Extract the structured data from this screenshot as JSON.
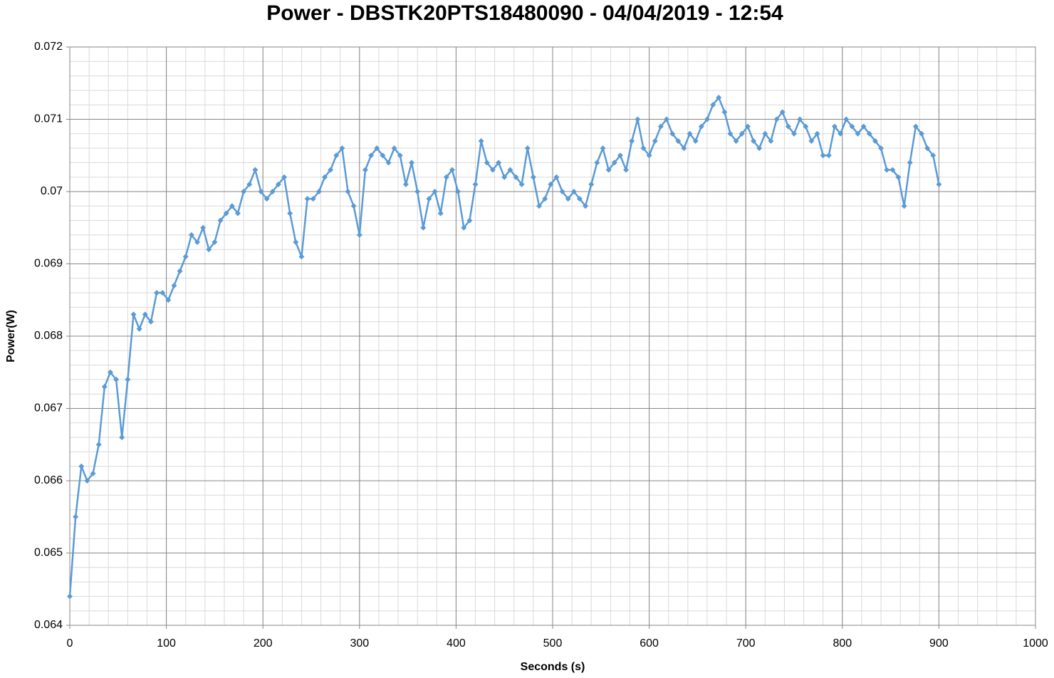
{
  "chart_data": {
    "type": "line",
    "title": "Power - DBSTK20PTS18480090 - 04/04/2019 - 12:54",
    "x_label": "Seconds (s)",
    "y_label": "Power(W)",
    "xlim": [
      0,
      1000
    ],
    "xticks": [
      0,
      100,
      200,
      300,
      400,
      500,
      600,
      700,
      800,
      900,
      1000
    ],
    "ylim": [
      0.064,
      0.072
    ],
    "yticks": [
      0.064,
      0.065,
      0.066,
      0.067,
      0.068,
      0.069,
      0.07,
      0.071,
      0.072
    ],
    "grid": true,
    "minor_grid": {
      "x": 20,
      "y": 0.0002
    },
    "marker": "diamond",
    "series": [
      {
        "color": "#5b9bd5",
        "x": [
          0,
          6,
          12,
          18,
          24,
          30,
          36,
          42,
          48,
          54,
          60,
          66,
          72,
          78,
          84,
          90,
          96,
          102,
          108,
          114,
          120,
          126,
          132,
          138,
          144,
          150,
          156,
          162,
          168,
          174,
          180,
          186,
          192,
          198,
          204,
          210,
          216,
          222,
          228,
          234,
          240,
          246,
          252,
          258,
          264,
          270,
          276,
          282,
          288,
          294,
          300,
          306,
          312,
          318,
          324,
          330,
          336,
          342,
          348,
          354,
          360,
          366,
          372,
          378,
          384,
          390,
          396,
          402,
          408,
          414,
          420,
          426,
          432,
          438,
          444,
          450,
          456,
          462,
          468,
          474,
          480,
          486,
          492,
          498,
          504,
          510,
          516,
          522,
          528,
          534,
          540,
          546,
          552,
          558,
          564,
          570,
          576,
          582,
          588,
          594,
          600,
          606,
          612,
          618,
          624,
          630,
          636,
          642,
          648,
          654,
          660,
          666,
          672,
          678,
          684,
          690,
          696,
          702,
          708,
          714,
          720,
          726,
          732,
          738,
          744,
          750,
          756,
          762,
          768,
          774,
          780,
          786,
          792,
          798,
          804,
          810,
          816,
          822,
          828,
          834,
          840,
          846,
          852,
          858,
          864,
          870,
          876,
          882,
          888,
          894,
          900
        ],
        "values": [
          0.0644,
          0.0655,
          0.0662,
          0.066,
          0.0661,
          0.0665,
          0.0673,
          0.0675,
          0.0674,
          0.0666,
          0.0674,
          0.0683,
          0.0681,
          0.0683,
          0.0682,
          0.0686,
          0.0686,
          0.0685,
          0.0687,
          0.0689,
          0.0691,
          0.0694,
          0.0693,
          0.0695,
          0.0692,
          0.0693,
          0.0696,
          0.0697,
          0.0698,
          0.0697,
          0.07,
          0.0701,
          0.0703,
          0.07,
          0.0699,
          0.07,
          0.0701,
          0.0702,
          0.0697,
          0.0693,
          0.0691,
          0.0699,
          0.0699,
          0.07,
          0.0702,
          0.0703,
          0.0705,
          0.0706,
          0.07,
          0.0698,
          0.0694,
          0.0703,
          0.0705,
          0.0706,
          0.0705,
          0.0704,
          0.0706,
          0.0705,
          0.0701,
          0.0704,
          0.07,
          0.0695,
          0.0699,
          0.07,
          0.0697,
          0.0702,
          0.0703,
          0.07,
          0.0695,
          0.0696,
          0.0701,
          0.0707,
          0.0704,
          0.0703,
          0.0704,
          0.0702,
          0.0703,
          0.0702,
          0.0701,
          0.0706,
          0.0702,
          0.0698,
          0.0699,
          0.0701,
          0.0702,
          0.07,
          0.0699,
          0.07,
          0.0699,
          0.0698,
          0.0701,
          0.0704,
          0.0706,
          0.0703,
          0.0704,
          0.0705,
          0.0703,
          0.0707,
          0.071,
          0.0706,
          0.0705,
          0.0707,
          0.0709,
          0.071,
          0.0708,
          0.0707,
          0.0706,
          0.0708,
          0.0707,
          0.0709,
          0.071,
          0.0712,
          0.0713,
          0.0711,
          0.0708,
          0.0707,
          0.0708,
          0.0709,
          0.0707,
          0.0706,
          0.0708,
          0.0707,
          0.071,
          0.0711,
          0.0709,
          0.0708,
          0.071,
          0.0709,
          0.0707,
          0.0708,
          0.0705,
          0.0705,
          0.0709,
          0.0708,
          0.071,
          0.0709,
          0.0708,
          0.0709,
          0.0708,
          0.0707,
          0.0706,
          0.0703,
          0.0703,
          0.0702,
          0.0698,
          0.0704,
          0.0709,
          0.0708,
          0.0706,
          0.0705,
          0.0701
        ]
      }
    ]
  }
}
